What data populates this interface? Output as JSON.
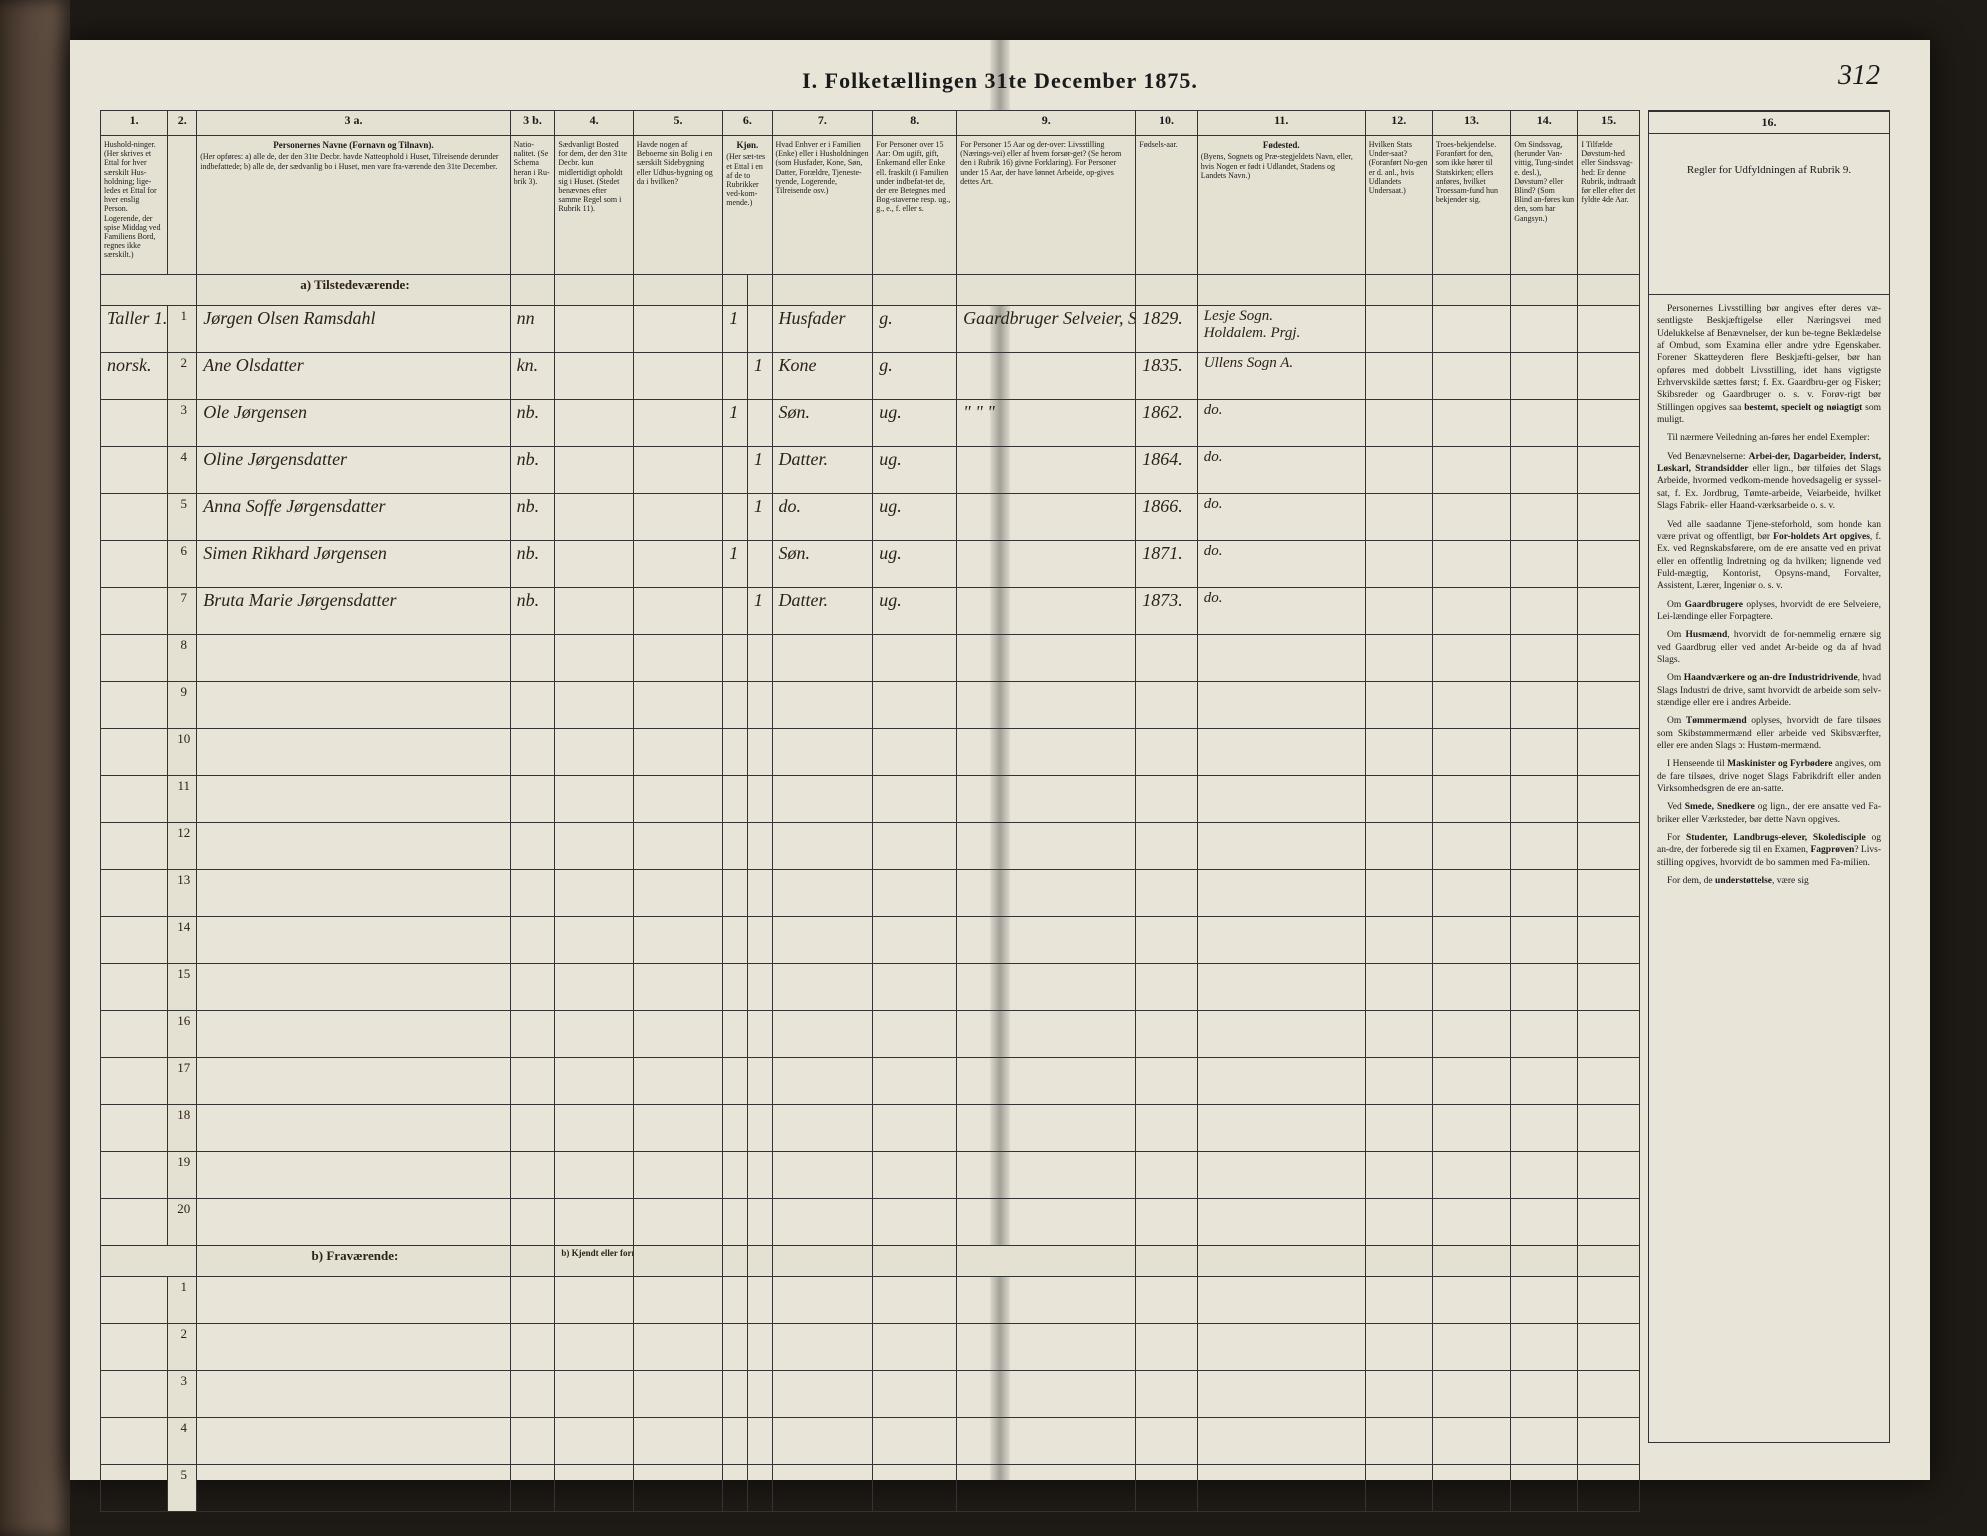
{
  "document": {
    "title": "I.  Folketællingen 31te December 1875.",
    "page_number": "312",
    "background_color": "#e8e4d8",
    "border_color": "#333333",
    "handwriting_color": "#2a2418"
  },
  "columns": {
    "numbers": [
      "1.",
      "2.",
      "3 a.",
      "3 b.",
      "4.",
      "5.",
      "6.",
      "7.",
      "8.",
      "9.",
      "10.",
      "11.",
      "12.",
      "13.",
      "14.",
      "15.",
      "16."
    ],
    "heads": {
      "c1": "Hushold-ninger. (Her skrives et Ettal for hver særskilt Hus-holdning; lige-ledes et Ettal for hver enslig Person. Logerende, der spise Middag ved Familiens Bord, regnes ikke særskilt.)",
      "c3a_title": "Personernes Navne (Fornavn og Tilnavn).",
      "c3a_body": "(Her opføres:\na) alle de, der den 31te Decbr. havde Natteophold i Huset, Tilreisende derunder indbefattede;\nb) alle de, der sædvanlig bo i Huset, men vare fra-værende den 31te December.",
      "c3b": "Natio-nalitet. (Se Schema heran i Ru-brik 3).",
      "c4": "Sædvanligt Bosted for dem, der den 31te Decbr. kun midlertidigt opholdt sig i Huset. (Stedet benævnes efter samme Regel som i Rubrik 11).",
      "c5": "Havde nogen af Beboerne sin Bolig i en særskilt Sidebygning eller Udhus-bygning og da i hvilken?",
      "c6_title": "Kjøn.",
      "c6_body": "(Her sæt-tes et Ettal i en af de to Rubrikker ved-kom-mende.)",
      "c6a": "Mandkjøn.",
      "c6b": "Kvindekjøn.",
      "c7": "Hvad Enhver er i Familien (Enke) eller i Husholdningen (som Husfader, Kone, Søn, Datter, Forældre, Tjeneste-tyende, Logerende, Tilreisende osv.)",
      "c8": "For Personer over 15 Aar: Om ugift, gift, Enkemand eller Enke ell. fraskilt (i Familien under indbefat-tet de, der ere Betegnes med Bog-staverne resp. ug., g., e., f. eller s.",
      "c9": "For Personer 15 Aar og der-over: Livsstilling (Nærings-vei) eller af hvem forsør-get? (Se herom den i Rubrik 16) givne Forklaring). For Personer under 15 Aar, der have lønnet Arbeide, op-gives dettes Art.",
      "c10": "Fødsels-aar.",
      "c11_title": "Fødested.",
      "c11_body": "(Byens, Sognets og Præ-stegjeldets Navn, eller, hvis Nogen er født i Udlandet, Stadens og Landets Navn.)",
      "c12": "Hvilken Stats Under-saat? (Foranført No-gen er d. anl., hvis Udlandets Undersaat.)",
      "c13": "Troes-bekjendelse. Foranført for den, som ikke hører til Statskirken; ellers anføres, hvilket Troessam-fund hun bekjender sig.",
      "c14": "Om Sindssvag, (herunder Van-vittig, Tung-sindet e. desl.), Døvstum? eller Blind? (Som Blind an-føres kun den, som har Gangsyn.)",
      "c15": "I Tilfælde Døvstum-hed eller Sindssvag-hed: Er denne Rubrik, indtraadt før eller efter det fyldte 4de Aar.",
      "c16_title": "Regler for Udfyldningen af Rubrik 9."
    }
  },
  "sections": {
    "a": "a)  Tilstedeværende:",
    "b": "b)  Fraværende:",
    "b_col4": "b) Kjendt eller formodet Opholdssted."
  },
  "rows_a": [
    {
      "num": "1",
      "household": "Taller 1.",
      "household_extra": "norsk.",
      "name": "Jørgen Olsen Ramsdahl",
      "nat": "nn",
      "m": "1",
      "k": "",
      "rel": "Husfader",
      "ms": "g.",
      "occ": "Gaardbruger Selveier, Skovdrift.",
      "year": "1829.",
      "place": "Lesje Sogn.",
      "place2": "Holdalem. Prgj."
    },
    {
      "num": "2",
      "household": "",
      "name": "Ane Olsdatter",
      "nat": "kn.",
      "m": "",
      "k": "1",
      "rel": "Kone",
      "ms": "g.",
      "occ": "",
      "year": "1835.",
      "place": "Ullens Sogn A."
    },
    {
      "num": "3",
      "household": "",
      "name": "Ole Jørgensen",
      "nat": "nb.",
      "m": "1",
      "k": "",
      "rel": "Søn.",
      "ms": "ug.",
      "occ": "\"    \"    \"",
      "year": "1862.",
      "place": "do."
    },
    {
      "num": "4",
      "household": "",
      "name": "Oline Jørgensdatter",
      "nat": "nb.",
      "m": "",
      "k": "1",
      "rel": "Datter.",
      "ms": "ug.",
      "occ": "",
      "year": "1864.",
      "place": "do."
    },
    {
      "num": "5",
      "household": "",
      "name": "Anna Soffe Jørgensdatter",
      "nat": "nb.",
      "m": "",
      "k": "1",
      "rel": "do.",
      "ms": "ug.",
      "occ": "",
      "year": "1866.",
      "place": "do."
    },
    {
      "num": "6",
      "household": "",
      "name": "Simen Rikhard Jørgensen",
      "nat": "nb.",
      "m": "1",
      "k": "",
      "rel": "Søn.",
      "ms": "ug.",
      "occ": "",
      "year": "1871.",
      "place": "do."
    },
    {
      "num": "7",
      "household": "",
      "name": "Bruta Marie Jørgensdatter",
      "nat": "nb.",
      "m": "",
      "k": "1",
      "rel": "Datter.",
      "ms": "ug.",
      "occ": "",
      "year": "1873.",
      "place": "do."
    }
  ],
  "blank_a_rows": [
    "8",
    "9",
    "10",
    "11",
    "12",
    "13",
    "14",
    "15",
    "16",
    "17",
    "18",
    "19",
    "20"
  ],
  "blank_b_rows": [
    "1",
    "2",
    "3",
    "4",
    "5"
  ],
  "rules_text": [
    "Personernes Livsstilling bør angives efter deres væ-sentligste Beskjæftigelse eller Næringsvei med Udelukkelse af Benævnelser, der kun be-tegne Beklædelse af Ombud, som Examina eller andre ydre Egenskaber. Forener Skatteyderen flere Beskjæfti-gelser, bør han opføres med dobbelt Livsstilling, idet hans vigtigste Erhvervskilde sættes først; f. Ex. Gaardbru-ger og Fisker; Skibsreder og Gaardbruger o. s. v. Forøv-rigt bør Stillingen opgives saa <b>bestemt, specielt og nøiagtigt</b> som muligt.",
    "Til nærmere Veiledning an-føres her endel Exempler:",
    "Ved Benævnelserne: <b>Arbei-der, Dagarbeider, Inderst, Løskarl, Strandsidder</b> eller lign., bør tilføies det Slags Arbeide, hvormed vedkom-mende hovedsagelig er syssel-sat, f. Ex. Jordbrug, Tømte-arbeide, Veiarbeide, hvilket Slags Fabrik- eller Haand-værksarbeide o. s. v.",
    "Ved alle saadanne Tjene-steforhold, som honde kan være privat og offentligt, bør <b>For-holdets Art opgives</b>, f. Ex. ved Regnskabsførere, om de ere ansatte ved en privat eller en offentlig Indretning og da hvilken; lignende ved Fuld-mægtig, Kontorist, Opsyns-mand, Forvalter, Assistent, Lærer, Ingeniør o. s. v.",
    "Om <b>Gaardbrugere</b> oplyses, hvorvidt de ere Selveiere, Lei-lændinge eller Forpagtere.",
    "Om <b>Husmænd</b>, hvorvidt de for-nemmelig ernære sig ved Gaardbrug eller ved andet Ar-beide og da af hvad Slags.",
    "Om <b>Haandværkere og an-dre Industridrivende</b>, hvad Slags Industri de drive, samt hvorvidt de arbeide som selv-stændige eller ere i andres Arbeide.",
    "Om <b>Tømmermænd</b> oplyses, hvorvidt de fare tilsøes som Skibstømmermænd eller arbeide ved Skibsværfter, eller ere anden Slags ↄ: Hustøm-mermænd.",
    "I Henseende til <b>Maskinister og Fyrbødere</b> angives, om de fare tilsøes, drive noget Slags Fabrikdrift eller anden Virksomhedsgren de ere an-satte.",
    "Ved <b>Smede, Snedkere</b> og lign., der ere ansatte ved Fa-briker eller Værksteder, bør dette Navn opgives.",
    "For <b>Studenter, Landbrugs-elever, Skoledisciple</b> og an-dre, der forberede sig til en Examen, <b>Fagprøven</b>? Livs-stilling opgives, hvorvidt de bo sammen med Fa-milien.",
    "For dem, de <b>understøttelse</b>, være sig"
  ]
}
